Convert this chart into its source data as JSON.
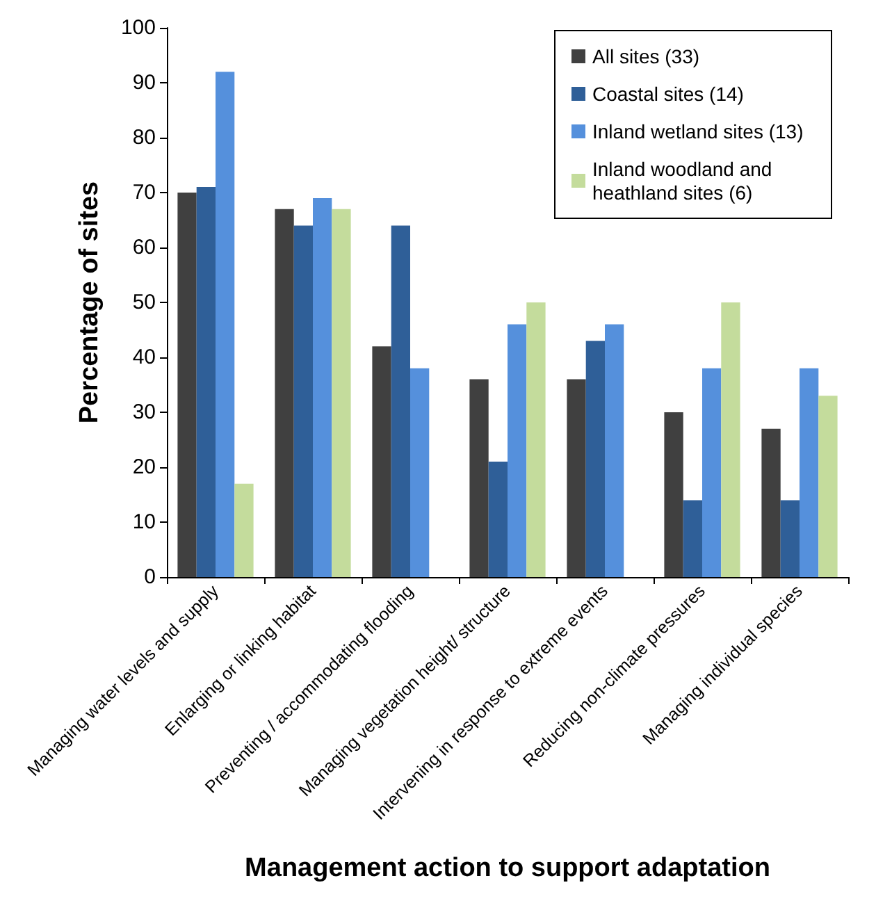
{
  "chart_data": {
    "type": "bar",
    "xlabel": "Management action to support adaptation",
    "ylabel": "Percentage of sites",
    "categories": [
      "Managing water levels and supply",
      "Enlarging or linking habitat",
      "Preventing / accommodating flooding",
      "Managing vegetation height/ structure",
      "Intervening in response to extreme events",
      "Reducing non-climate pressures",
      "Managing individual species"
    ],
    "series": [
      {
        "name": "All sites (33)",
        "color": "#404040",
        "values": [
          70,
          67,
          42,
          36,
          36,
          30,
          27
        ]
      },
      {
        "name": "Coastal sites (14)",
        "color": "#2f5f98",
        "values": [
          71,
          64,
          64,
          21,
          43,
          14,
          14
        ]
      },
      {
        "name": "Inland wetland sites (13)",
        "color": "#5590dc",
        "values": [
          92,
          69,
          38,
          46,
          46,
          38,
          38
        ]
      },
      {
        "name": "Inland woodland and heathland sites (6)",
        "color": "#c4dc9c",
        "values": [
          17,
          67,
          0,
          50,
          0,
          50,
          33
        ]
      }
    ],
    "ylim": [
      0,
      100
    ],
    "yticks": [
      0,
      10,
      20,
      30,
      40,
      50,
      60,
      70,
      80,
      90,
      100
    ],
    "grid": false,
    "legend": "top right"
  }
}
